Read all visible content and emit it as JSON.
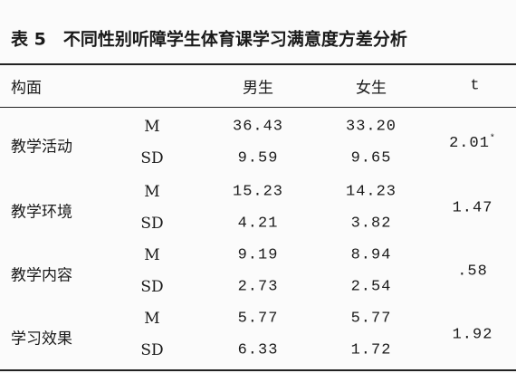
{
  "title": "表 5　不同性别听障学生体育课学习满意度方差分析",
  "header": [
    "构面",
    "男生",
    "女生",
    "t"
  ],
  "groups": [
    {
      "name": "教学活动",
      "rows": [
        [
          "M",
          "36.43",
          "33.20"
        ],
        [
          "SD",
          "9.59",
          "9.65"
        ]
      ],
      "t": "2.01",
      "t_mark": "*"
    },
    {
      "name": "教学环境",
      "rows": [
        [
          "M",
          "15.23",
          "14.23"
        ],
        [
          "SD",
          "4.21",
          "3.82"
        ]
      ],
      "t": "1.47"
    },
    {
      "name": "教学内容",
      "rows": [
        [
          "M",
          "9.19",
          "8.94"
        ],
        [
          "SD",
          "2.73",
          "2.54"
        ]
      ],
      "t": ".58"
    },
    {
      "name": "学习效果",
      "rows": [
        [
          "M",
          "5.77",
          "5.77"
        ],
        [
          "SD",
          "6.33",
          "1.72"
        ]
      ],
      "t": "1.92"
    }
  ]
}
